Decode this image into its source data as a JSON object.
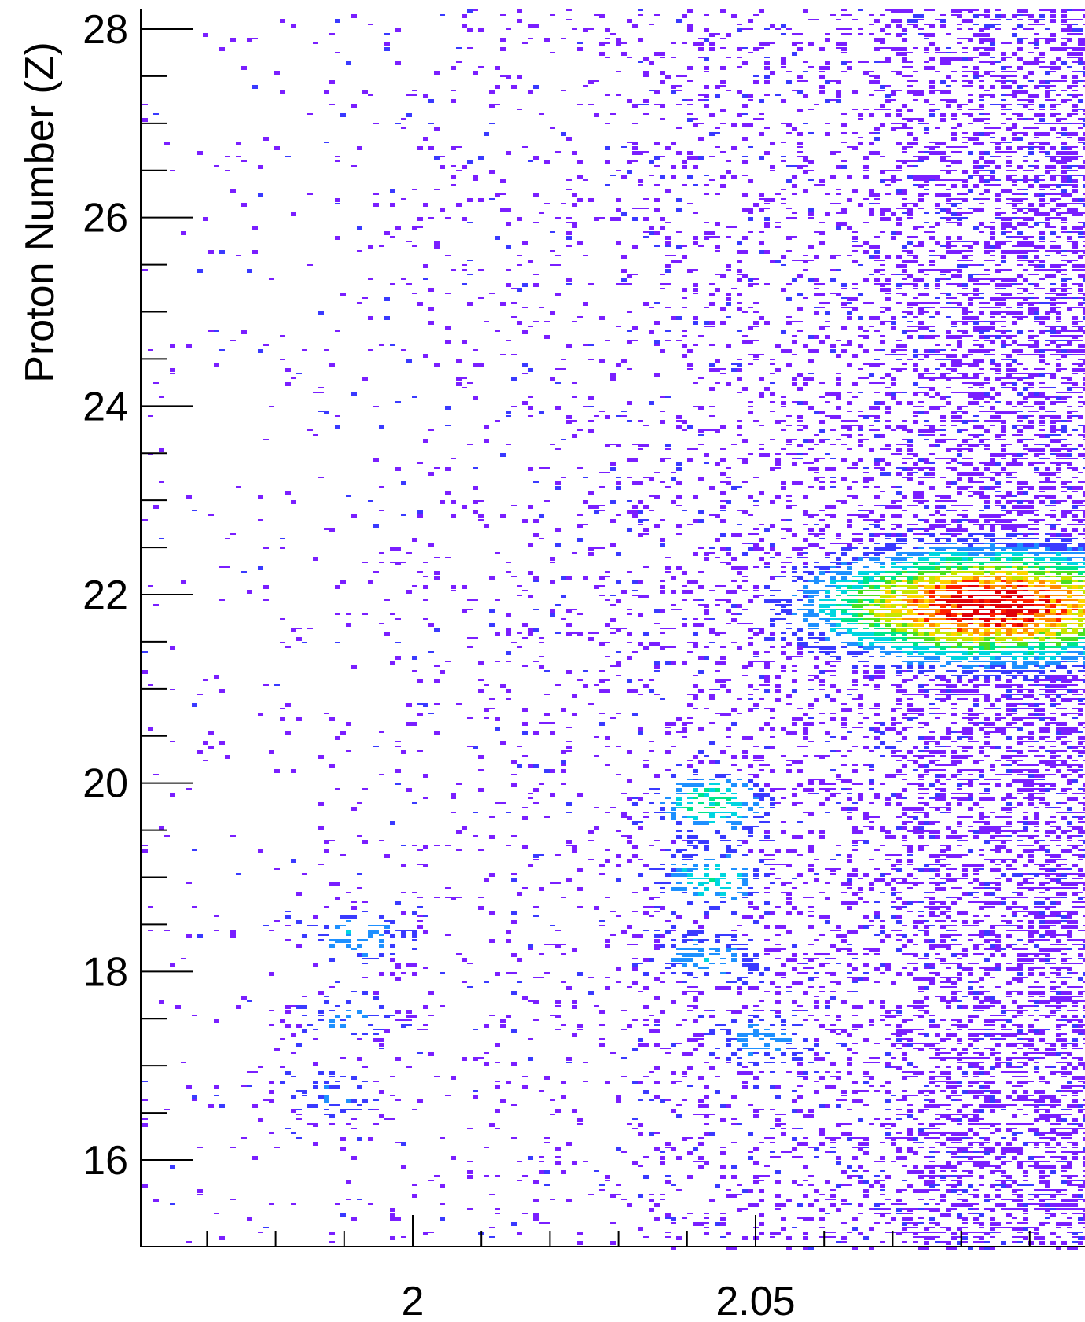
{
  "chart_data": {
    "type": "heatmap",
    "title": "",
    "xlabel": "",
    "ylabel": "Proton Number (Z)",
    "xlim": [
      1.96,
      2.08
    ],
    "ylim": [
      16,
      28.2
    ],
    "x_ticks": [
      {
        "value": 2.0,
        "label": "2"
      },
      {
        "value": 2.05,
        "label": "2.05"
      }
    ],
    "y_ticks": [
      {
        "value": 16,
        "label": "16"
      },
      {
        "value": 18,
        "label": "18"
      },
      {
        "value": 20,
        "label": "20"
      },
      {
        "value": 22,
        "label": "22"
      },
      {
        "value": 24,
        "label": "24"
      },
      {
        "value": 26,
        "label": "26"
      },
      {
        "value": 28,
        "label": "28"
      }
    ],
    "x_minor_step": 0.01,
    "y_minor_step": 0.5,
    "grid": false,
    "legend": "none",
    "colormap": [
      "#7a1fff",
      "#3a3aff",
      "#1e90ff",
      "#00d5e0",
      "#00e68a",
      "#4be020",
      "#c8e600",
      "#ffd400",
      "#ff8c00",
      "#ff2000",
      "#e0000a"
    ],
    "clusters": [
      {
        "x": 2.084,
        "z": 21.9,
        "peak": 1.0
      },
      {
        "x": 2.043,
        "z": 19.8,
        "peak": 0.42
      },
      {
        "x": 2.043,
        "z": 19.0,
        "peak": 0.34
      },
      {
        "x": 2.043,
        "z": 18.15,
        "peak": 0.26
      },
      {
        "x": 2.05,
        "z": 17.3,
        "peak": 0.24
      },
      {
        "x": 1.992,
        "z": 18.4,
        "peak": 0.26
      },
      {
        "x": 1.99,
        "z": 17.55,
        "peak": 0.2
      },
      {
        "x": 1.988,
        "z": 16.7,
        "peak": 0.2
      }
    ]
  }
}
